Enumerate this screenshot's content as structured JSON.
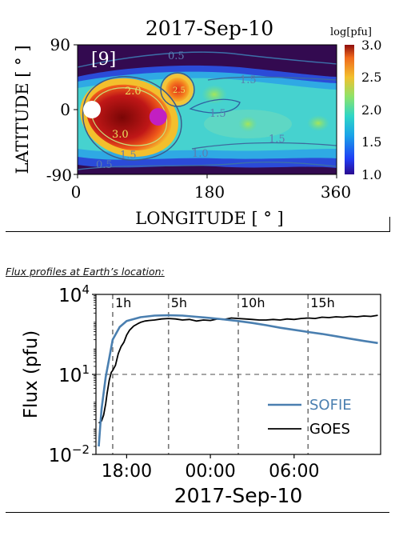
{
  "map": {
    "title": "2017-Sep-10",
    "panel_label": "[9]",
    "xlabel": "LONGITUDE [ ° ]",
    "ylabel": "LATITUDE [ ° ]",
    "x_ticks": [
      "0",
      "180",
      "360"
    ],
    "y_ticks": [
      "90",
      "0",
      "-90"
    ],
    "colorbar": {
      "label": "log[pfu]",
      "ticks": [
        "3.0",
        "2.5",
        "2.0",
        "1.5",
        "1.0"
      ],
      "range": [
        1.0,
        3.0
      ]
    },
    "contour_labels": [
      "0.5",
      "1.5",
      "2.0",
      "1.5",
      "3.0",
      "1.5",
      "1.0",
      "1.5",
      "0.5",
      "2.5"
    ],
    "markers": [
      {
        "name": "white",
        "color": "#ffffff",
        "lon": 20,
        "lat": 0
      },
      {
        "name": "magenta",
        "color": "#c21fc2",
        "lon": 112,
        "lat": -10
      }
    ]
  },
  "caption": "Flux profiles at Earth’s location:",
  "chart_data": {
    "type": "line",
    "ylabel": "Flux (pfu)",
    "xlabel": "2017-Sep-10",
    "y_scale": "log",
    "ylim": [
      0.01,
      10000
    ],
    "y_ticks": [
      {
        "base": "10",
        "exp": "4",
        "value": 10000
      },
      {
        "base": "10",
        "exp": "1",
        "value": 10
      },
      {
        "base": "10",
        "exp": "−2",
        "value": 0.01
      }
    ],
    "x_ticks": [
      {
        "label": "18:00",
        "h": 2
      },
      {
        "label": "00:00",
        "h": 8
      },
      {
        "label": "06:00",
        "h": 14
      }
    ],
    "xlim_hours_after_1600": [
      -0.2,
      20.2
    ],
    "threshold": 10,
    "vlines": [
      {
        "label": "1h",
        "h": 1
      },
      {
        "label": "5h",
        "h": 5
      },
      {
        "label": "10h",
        "h": 10
      },
      {
        "label": "15h",
        "h": 15
      }
    ],
    "legend": {
      "placement": "lower-right"
    },
    "series": [
      {
        "name": "SOFIE",
        "color": "#4a7fb0",
        "points": [
          [
            0,
            0.02
          ],
          [
            0.1,
            0.1
          ],
          [
            0.2,
            0.5
          ],
          [
            0.35,
            2
          ],
          [
            0.5,
            8
          ],
          [
            0.75,
            40
          ],
          [
            1.0,
            200
          ],
          [
            1.5,
            600
          ],
          [
            2,
            1000
          ],
          [
            3,
            1400
          ],
          [
            4,
            1600
          ],
          [
            5,
            1650
          ],
          [
            6,
            1600
          ],
          [
            7,
            1450
          ],
          [
            8,
            1300
          ],
          [
            9,
            1150
          ],
          [
            10,
            1000
          ],
          [
            11,
            850
          ],
          [
            12,
            700
          ],
          [
            13,
            560
          ],
          [
            14,
            470
          ],
          [
            15,
            390
          ],
          [
            16,
            330
          ],
          [
            17,
            270
          ],
          [
            18,
            220
          ],
          [
            19,
            180
          ],
          [
            20,
            150
          ]
        ]
      },
      {
        "name": "GOES",
        "color": "#000000",
        "points": [
          [
            0,
            0.15
          ],
          [
            0.2,
            0.18
          ],
          [
            0.35,
            0.3
          ],
          [
            0.5,
            0.8
          ],
          [
            0.6,
            2
          ],
          [
            0.75,
            6
          ],
          [
            0.9,
            12
          ],
          [
            1.0,
            14
          ],
          [
            1.2,
            22
          ],
          [
            1.4,
            60
          ],
          [
            1.6,
            110
          ],
          [
            1.8,
            160
          ],
          [
            2.0,
            300
          ],
          [
            2.2,
            450
          ],
          [
            2.5,
            650
          ],
          [
            2.8,
            800
          ],
          [
            3.0,
            900
          ],
          [
            3.3,
            1000
          ],
          [
            3.6,
            1050
          ],
          [
            4,
            1100
          ],
          [
            4.5,
            1200
          ],
          [
            5,
            1250
          ],
          [
            5.5,
            1200
          ],
          [
            6,
            1100
          ],
          [
            6.5,
            1150
          ],
          [
            7,
            1000
          ],
          [
            7.5,
            1100
          ],
          [
            8,
            1050
          ],
          [
            8.5,
            1200
          ],
          [
            9,
            1150
          ],
          [
            9.5,
            1300
          ],
          [
            10,
            1250
          ],
          [
            10.5,
            1200
          ],
          [
            11,
            1150
          ],
          [
            11.5,
            1100
          ],
          [
            12,
            1100
          ],
          [
            12.5,
            1150
          ],
          [
            13,
            1100
          ],
          [
            13.5,
            1200
          ],
          [
            14,
            1150
          ],
          [
            14.5,
            1250
          ],
          [
            15,
            1300
          ],
          [
            15.5,
            1250
          ],
          [
            16,
            1400
          ],
          [
            16.5,
            1350
          ],
          [
            17,
            1450
          ],
          [
            17.5,
            1400
          ],
          [
            18,
            1500
          ],
          [
            18.5,
            1450
          ],
          [
            19,
            1550
          ],
          [
            19.5,
            1500
          ],
          [
            20,
            1650
          ]
        ]
      }
    ]
  }
}
